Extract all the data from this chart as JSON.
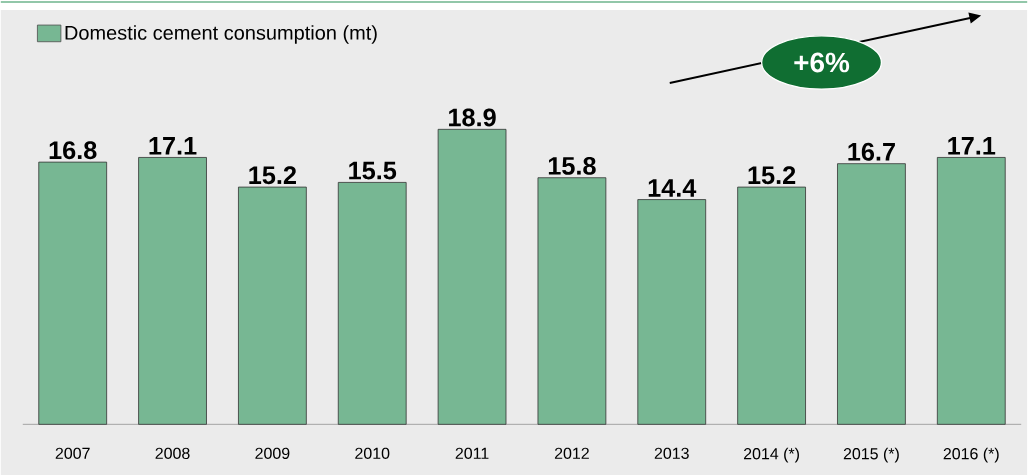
{
  "chart_data": {
    "type": "bar",
    "categories": [
      "2007",
      "2008",
      "2009",
      "2010",
      "2011",
      "2012",
      "2013",
      "2014 (*)",
      "2015 (*)",
      "2016 (*)"
    ],
    "series": [
      {
        "name": "Domestic cement consumption (mt)",
        "color": "#77b793",
        "values": [
          16.8,
          17.1,
          15.2,
          15.5,
          18.9,
          15.8,
          14.4,
          15.2,
          16.7,
          17.1
        ]
      }
    ],
    "data_labels": true,
    "legend": "top left",
    "tick_labels": "x",
    "annotations": [
      "+6%"
    ]
  }
}
